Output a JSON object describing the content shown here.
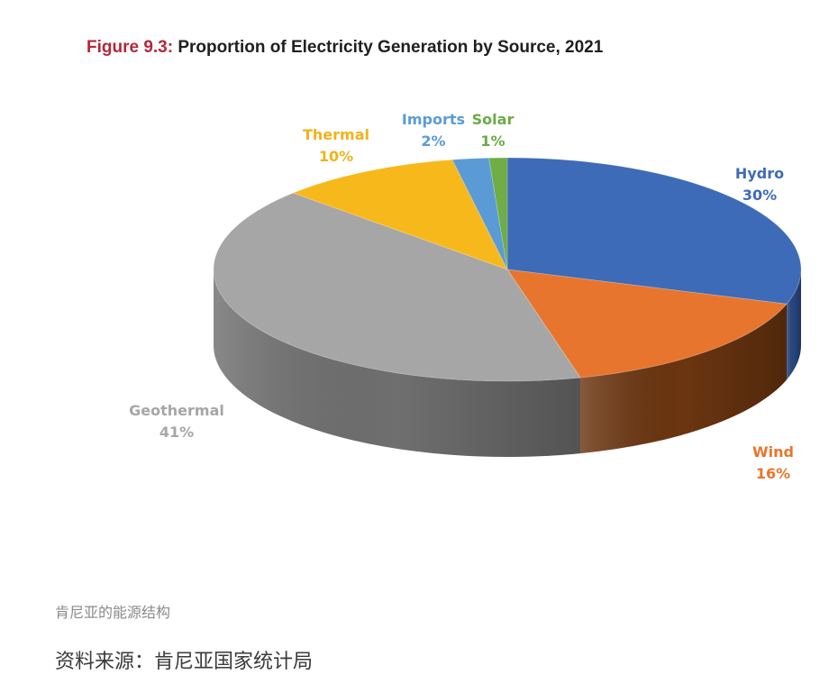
{
  "chart_data": {
    "type": "pie",
    "title_prefix": "Figure 9.3:",
    "title": "Proportion of Electricity Generation by Source, 2021",
    "slices": [
      {
        "label": "Hydro",
        "value": 30,
        "value_label": "30%",
        "color": "#3e6bb7",
        "side_color": "#27467e",
        "label_color": "#3e6bb7"
      },
      {
        "label": "Wind",
        "value": 16,
        "value_label": "16%",
        "color": "#e8752d",
        "side_color": "#6b3510",
        "label_color": "#e8752d"
      },
      {
        "label": "Geothermal",
        "value": 41,
        "value_label": "41%",
        "color": "#a6a6a6",
        "side_color": "#6f6f6f",
        "label_color": "#a6a6a6"
      },
      {
        "label": "Thermal",
        "value": 10,
        "value_label": "10%",
        "color": "#f7b81b",
        "side_color": "#9a7010",
        "label_color": "#f1b21a"
      },
      {
        "label": "Imports",
        "value": 2,
        "value_label": "2%",
        "color": "#5b9bd5",
        "side_color": "#355f85",
        "label_color": "#5b9bd5"
      },
      {
        "label": "Solar",
        "value": 1,
        "value_label": "1%",
        "color": "#70ad47",
        "side_color": "#3f6a25",
        "label_color": "#6aab45"
      }
    ],
    "title_color": "#b2283a"
  },
  "caption": "肯尼亚的能源结构",
  "source_note": "资料来源：肯尼亚国家统计局"
}
